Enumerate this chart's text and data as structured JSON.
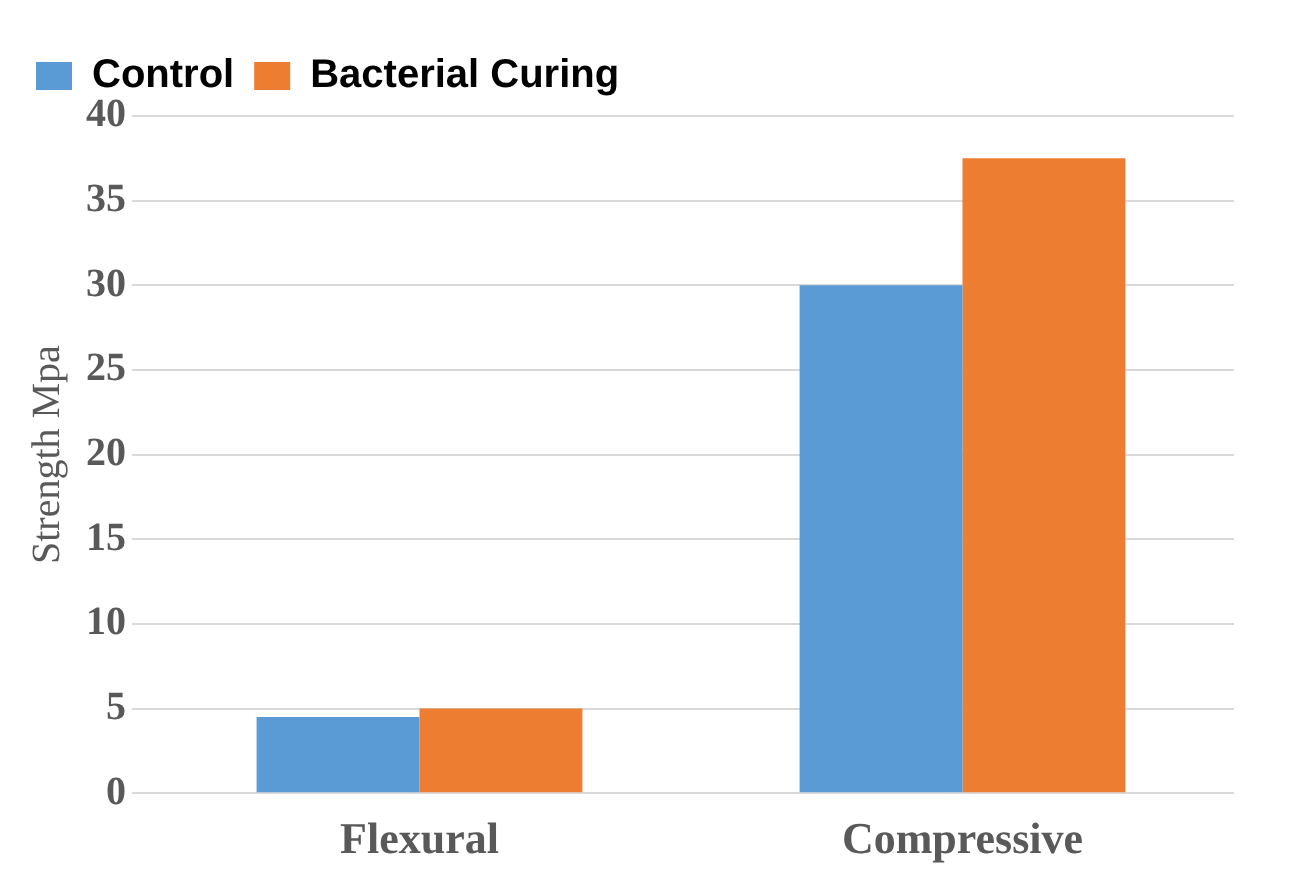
{
  "chart_data": {
    "type": "bar",
    "ylabel": "Strength Mpa",
    "categories": [
      "Flexural",
      "Compressive"
    ],
    "series": [
      {
        "name": "Control",
        "color": "#5b9bd5",
        "values": [
          4.5,
          30
        ]
      },
      {
        "name": "Bacterial Curing",
        "color": "#ed7d31",
        "values": [
          5,
          37.5
        ]
      }
    ],
    "ylim": [
      0,
      40
    ],
    "yticks": [
      0,
      5,
      10,
      15,
      20,
      25,
      30,
      35,
      40
    ],
    "grid": "y",
    "legend": "top left"
  }
}
